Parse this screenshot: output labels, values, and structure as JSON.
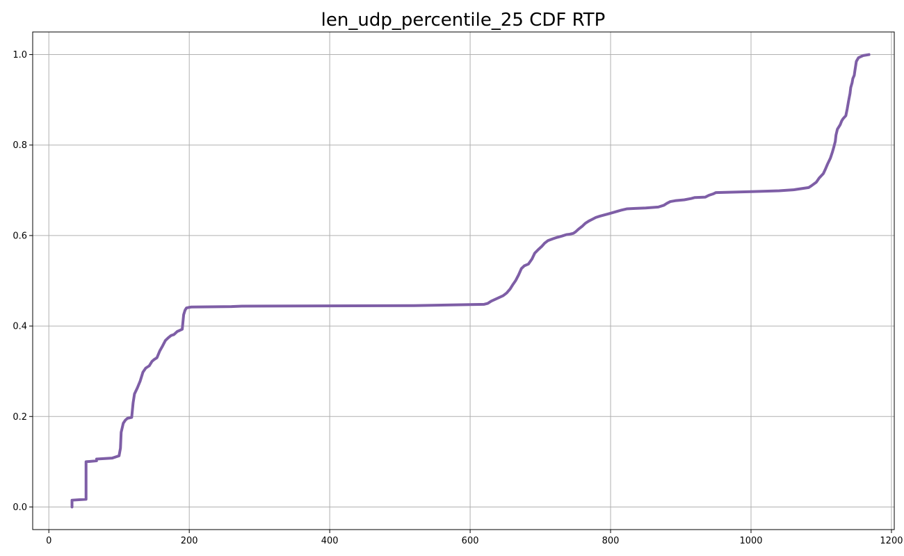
{
  "chart_data": {
    "type": "line",
    "title": "len_udp_percentile_25 CDF RTP",
    "xlabel": "",
    "ylabel": "",
    "xlim": [
      -23,
      1204
    ],
    "ylim": [
      -0.05,
      1.05
    ],
    "grid": true,
    "xticks": [
      0,
      200,
      400,
      600,
      800,
      1000,
      1200
    ],
    "xtick_labels": [
      "0",
      "200",
      "400",
      "600",
      "800",
      "1000",
      "1200"
    ],
    "yticks": [
      0.0,
      0.2,
      0.4,
      0.6,
      0.8,
      1.0
    ],
    "ytick_labels": [
      "0.0",
      "0.2",
      "0.4",
      "0.6",
      "0.8",
      "1.0"
    ],
    "series": [
      {
        "color": "#7e5ea6",
        "x": [
          33,
          33,
          53,
          53,
          68,
          68,
          90,
          100,
          102,
          103,
          106,
          109,
          112,
          118,
          120,
          122,
          126,
          130,
          134,
          138,
          143,
          147,
          150,
          154,
          158,
          162,
          166,
          170,
          174,
          178,
          183,
          186,
          190,
          192,
          194,
          196,
          199,
          203,
          260,
          275,
          520,
          620,
          625,
          630,
          640,
          647,
          652,
          657,
          661,
          665,
          669,
          673,
          677,
          683,
          688,
          692,
          697,
          702,
          706,
          711,
          718,
          724,
          731,
          737,
          742,
          747,
          750,
          755,
          760,
          764,
          769,
          774,
          779,
          785,
          790,
          797,
          806,
          815,
          823,
          835,
          850,
          868,
          876,
          880,
          885,
          892,
          905,
          915,
          920,
          935,
          940,
          946,
          950,
          1000,
          1040,
          1060,
          1082,
          1086,
          1093,
          1097,
          1103,
          1106,
          1109,
          1113,
          1116,
          1118,
          1120,
          1121,
          1123,
          1127,
          1129,
          1131,
          1135,
          1137,
          1139,
          1141,
          1142,
          1144,
          1145,
          1147,
          1148,
          1150,
          1153,
          1160,
          1168
        ],
        "y": [
          0.0,
          0.015,
          0.017,
          0.1,
          0.102,
          0.106,
          0.108,
          0.113,
          0.13,
          0.165,
          0.185,
          0.192,
          0.196,
          0.198,
          0.23,
          0.25,
          0.263,
          0.278,
          0.298,
          0.307,
          0.312,
          0.322,
          0.326,
          0.33,
          0.345,
          0.356,
          0.368,
          0.374,
          0.379,
          0.381,
          0.388,
          0.39,
          0.393,
          0.425,
          0.435,
          0.44,
          0.441,
          0.442,
          0.443,
          0.444,
          0.445,
          0.448,
          0.45,
          0.455,
          0.462,
          0.467,
          0.473,
          0.482,
          0.492,
          0.501,
          0.513,
          0.527,
          0.533,
          0.537,
          0.548,
          0.561,
          0.569,
          0.576,
          0.583,
          0.589,
          0.593,
          0.596,
          0.599,
          0.602,
          0.603,
          0.605,
          0.608,
          0.615,
          0.621,
          0.627,
          0.632,
          0.636,
          0.64,
          0.643,
          0.645,
          0.648,
          0.652,
          0.656,
          0.659,
          0.66,
          0.661,
          0.663,
          0.667,
          0.671,
          0.675,
          0.677,
          0.679,
          0.682,
          0.684,
          0.685,
          0.689,
          0.692,
          0.695,
          0.697,
          0.699,
          0.701,
          0.706,
          0.71,
          0.718,
          0.727,
          0.737,
          0.747,
          0.758,
          0.771,
          0.785,
          0.796,
          0.808,
          0.822,
          0.835,
          0.845,
          0.853,
          0.858,
          0.865,
          0.88,
          0.898,
          0.914,
          0.927,
          0.938,
          0.947,
          0.954,
          0.965,
          0.985,
          0.993,
          0.998,
          1.0
        ]
      }
    ]
  }
}
